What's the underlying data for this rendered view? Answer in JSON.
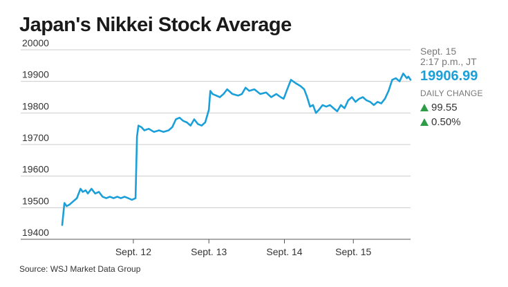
{
  "title": "Japan's Nikkei Stock Average",
  "source": "Source: WSJ Market Data Group",
  "sidebar": {
    "date": "Sept. 15",
    "time": "2:17 p.m., JT",
    "last_value": "19906.99",
    "daily_change_label": "DAILY CHANGE",
    "change_points": "99.55",
    "change_percent": "0.50%",
    "up_icon": "triangle-up-icon"
  },
  "colors": {
    "line": "#1a9fd8",
    "up": "#2e9c47",
    "grid": "#cccccc"
  },
  "chart_data": {
    "type": "line",
    "title": "Japan's Nikkei Stock Average",
    "xlabel": "",
    "ylabel": "",
    "ylim": [
      19400,
      20000
    ],
    "xlim": [
      0,
      4.75
    ],
    "y_ticks": [
      19400,
      19500,
      19600,
      19700,
      19800,
      19900,
      20000
    ],
    "x_ticks": [
      {
        "label": "Sept. 12",
        "x": 0.97
      },
      {
        "label": "Sept. 13",
        "x": 2.0
      },
      {
        "label": "Sept. 14",
        "x": 3.03
      },
      {
        "label": "Sept. 15",
        "x": 3.97
      }
    ],
    "series": [
      {
        "name": "Nikkei",
        "x": [
          0,
          0.03,
          0.06,
          0.1,
          0.15,
          0.2,
          0.25,
          0.28,
          0.32,
          0.35,
          0.4,
          0.45,
          0.5,
          0.55,
          0.6,
          0.65,
          0.7,
          0.75,
          0.8,
          0.85,
          0.9,
          0.95,
          1.0,
          1.02,
          1.04,
          1.08,
          1.12,
          1.18,
          1.25,
          1.32,
          1.38,
          1.45,
          1.5,
          1.55,
          1.6,
          1.65,
          1.7,
          1.75,
          1.8,
          1.85,
          1.9,
          1.95,
          2.0,
          2.02,
          2.05,
          2.1,
          2.15,
          2.2,
          2.25,
          2.32,
          2.4,
          2.45,
          2.5,
          2.55,
          2.62,
          2.7,
          2.78,
          2.85,
          2.92,
          2.98,
          3.02,
          3.06,
          3.12,
          3.18,
          3.25,
          3.3,
          3.34,
          3.38,
          3.42,
          3.46,
          3.5,
          3.55,
          3.6,
          3.65,
          3.7,
          3.75,
          3.8,
          3.85,
          3.9,
          3.95,
          4.0,
          4.05,
          4.1,
          4.15,
          4.2,
          4.25,
          4.3,
          4.35,
          4.4,
          4.45,
          4.5,
          4.55,
          4.6,
          4.65,
          4.7,
          4.72,
          4.75
        ],
        "values": [
          19445,
          19515,
          19505,
          19510,
          19520,
          19530,
          19560,
          19550,
          19555,
          19545,
          19560,
          19545,
          19550,
          19535,
          19530,
          19535,
          19530,
          19535,
          19530,
          19535,
          19530,
          19525,
          19530,
          19725,
          19760,
          19755,
          19745,
          19750,
          19740,
          19745,
          19740,
          19745,
          19755,
          19780,
          19785,
          19775,
          19770,
          19760,
          19780,
          19765,
          19760,
          19770,
          19810,
          19870,
          19860,
          19855,
          19850,
          19860,
          19875,
          19860,
          19855,
          19860,
          19880,
          19870,
          19875,
          19860,
          19865,
          19850,
          19860,
          19850,
          19845,
          19870,
          19905,
          19895,
          19885,
          19875,
          19850,
          19820,
          19825,
          19800,
          19810,
          19825,
          19820,
          19825,
          19815,
          19805,
          19825,
          19815,
          19840,
          19850,
          19835,
          19845,
          19850,
          19840,
          19835,
          19825,
          19835,
          19830,
          19845,
          19870,
          19905,
          19910,
          19900,
          19925,
          19910,
          19915,
          19905
        ]
      }
    ]
  }
}
